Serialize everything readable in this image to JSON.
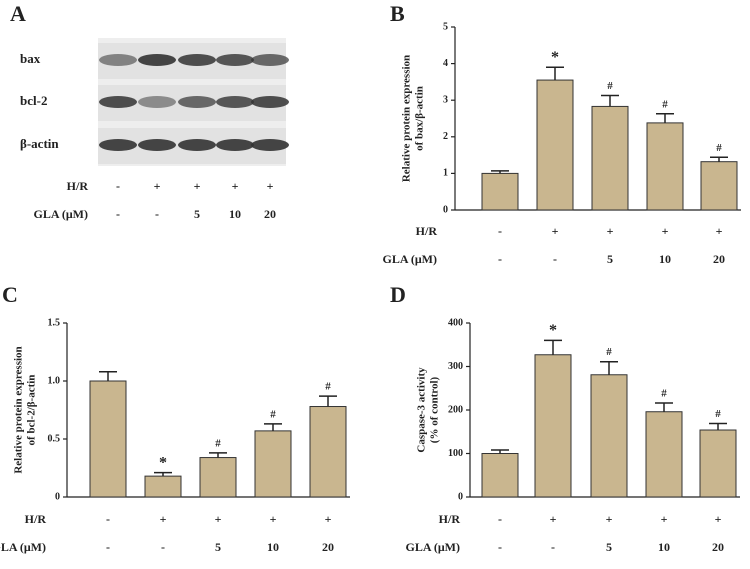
{
  "blot": {
    "panel": "A",
    "bands": [
      "bax",
      "bcl-2",
      "β-actin"
    ],
    "rows": [
      {
        "label": "H/R",
        "values": [
          "-",
          "+",
          "+",
          "+",
          "+"
        ]
      },
      {
        "label": "GLA (μM)",
        "values": [
          "-",
          "-",
          "5",
          "10",
          "20"
        ]
      }
    ]
  },
  "chart_data": [
    {
      "type": "bar",
      "panel": "B",
      "ylabel": [
        "Relative protein expression",
        "of bax/β-actin"
      ],
      "series": [
        {
          "color": "#c9b68f",
          "values": [
            1.0,
            3.55,
            2.83,
            2.38,
            1.32
          ],
          "errors": [
            0.07,
            0.35,
            0.3,
            0.25,
            0.12
          ]
        }
      ],
      "annotations": [
        null,
        "*",
        "#",
        "#",
        "#"
      ],
      "ylim": [
        0,
        5
      ],
      "yticks": [
        0,
        1,
        2,
        3,
        4,
        5
      ],
      "rows": [
        {
          "label": "H/R",
          "values": [
            "-",
            "+",
            "+",
            "+",
            "+"
          ]
        },
        {
          "label": "GLA (μM)",
          "values": [
            "-",
            "-",
            "5",
            "10",
            "20"
          ]
        }
      ]
    },
    {
      "type": "bar",
      "panel": "C",
      "ylabel": [
        "Relative protein expression",
        "of bcl-2/β-actin"
      ],
      "series": [
        {
          "color": "#c9b68f",
          "values": [
            1.0,
            0.18,
            0.34,
            0.57,
            0.78
          ],
          "errors": [
            0.08,
            0.03,
            0.04,
            0.06,
            0.09
          ]
        }
      ],
      "annotations": [
        null,
        "*",
        "#",
        "#",
        "#"
      ],
      "ylim": [
        0,
        1.5
      ],
      "yticks": [
        0,
        0.5,
        {
          "value": 1,
          "label": "1.0"
        },
        1.5
      ],
      "rows": [
        {
          "label": "H/R",
          "values": [
            "-",
            "+",
            "+",
            "+",
            "+"
          ]
        },
        {
          "label": "GLA (μM)",
          "values": [
            "-",
            "-",
            "5",
            "10",
            "20"
          ]
        }
      ]
    },
    {
      "type": "bar",
      "panel": "D",
      "ylabel": [
        "Caspase-3 activity",
        "(% of control)"
      ],
      "series": [
        {
          "color": "#c9b68f",
          "values": [
            100,
            327,
            281,
            196,
            154
          ],
          "errors": [
            8,
            33,
            30,
            20,
            15
          ]
        }
      ],
      "annotations": [
        null,
        "*",
        "#",
        "#",
        "#"
      ],
      "ylim": [
        0,
        400
      ],
      "yticks": [
        0,
        100,
        200,
        300,
        400
      ],
      "rows": [
        {
          "label": "H/R",
          "values": [
            "-",
            "+",
            "+",
            "+",
            "+"
          ]
        },
        {
          "label": "GLA (μM)",
          "values": [
            "-",
            "-",
            "5",
            "10",
            "20"
          ]
        }
      ]
    }
  ]
}
